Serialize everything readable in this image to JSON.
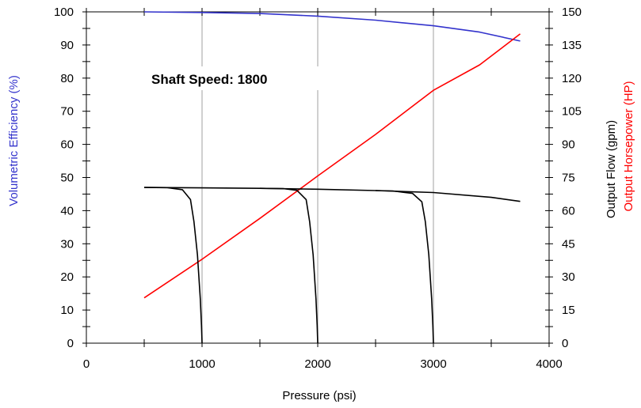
{
  "chart_data": {
    "type": "line",
    "annotation": "Shaft Speed: 1800",
    "xlabel": "Pressure (psi)",
    "xlim": [
      0,
      4000
    ],
    "xticks": [
      0,
      1000,
      2000,
      3000,
      4000
    ],
    "y_left": {
      "label": "Volumetric Efficiency (%)",
      "color": "#3333cc",
      "lim": [
        0,
        100
      ],
      "ticks": [
        0,
        10,
        20,
        30,
        40,
        50,
        60,
        70,
        80,
        90,
        100
      ]
    },
    "y_right": {
      "lim": [
        0,
        150
      ],
      "ticks": [
        0,
        15,
        30,
        45,
        60,
        75,
        90,
        105,
        120,
        135,
        150
      ],
      "labels": [
        {
          "text": "Output Flow (gpm)",
          "color": "#000000"
        },
        {
          "text": "Output Horsepower (HP)",
          "color": "#ff0000"
        }
      ]
    },
    "grid": {
      "vertical_at": [
        1000,
        2000,
        3000
      ]
    },
    "series": [
      {
        "axis": "left",
        "color": "#3333cc",
        "points": [
          [
            500,
            100
          ],
          [
            1000,
            99.8
          ],
          [
            1500,
            99.5
          ],
          [
            2000,
            98.7
          ],
          [
            2500,
            97.5
          ],
          [
            3000,
            95.8
          ],
          [
            3400,
            93.9
          ],
          [
            3750,
            91.2
          ]
        ]
      },
      {
        "axis": "right",
        "color": "#ff0000",
        "points": [
          [
            500,
            20.5
          ],
          [
            1000,
            38
          ],
          [
            1500,
            56.5
          ],
          [
            2000,
            75.7
          ],
          [
            2500,
            94.5
          ],
          [
            3000,
            114.5
          ],
          [
            3400,
            126
          ],
          [
            3750,
            140
          ]
        ]
      },
      {
        "axis": "right",
        "color": "#000000",
        "points": [
          [
            500,
            70.5
          ],
          [
            1000,
            70.3
          ],
          [
            1500,
            70.1
          ],
          [
            2000,
            69.7
          ],
          [
            2500,
            69.1
          ],
          [
            3000,
            68.2
          ],
          [
            3500,
            66.0
          ],
          [
            3750,
            64.2
          ]
        ]
      },
      {
        "axis": "right",
        "color": "#000000",
        "points": [
          [
            500,
            70.5
          ],
          [
            700,
            70.4
          ],
          [
            830,
            69.5
          ],
          [
            900,
            65
          ],
          [
            930,
            55
          ],
          [
            960,
            40
          ],
          [
            985,
            20
          ],
          [
            995,
            8
          ],
          [
            1000,
            0
          ]
        ]
      },
      {
        "axis": "right",
        "color": "#000000",
        "points": [
          [
            1500,
            70.1
          ],
          [
            1700,
            70.0
          ],
          [
            1820,
            69.2
          ],
          [
            1900,
            65
          ],
          [
            1930,
            55
          ],
          [
            1960,
            40
          ],
          [
            1985,
            20
          ],
          [
            1995,
            8
          ],
          [
            2000,
            0
          ]
        ]
      },
      {
        "axis": "right",
        "color": "#000000",
        "points": [
          [
            2500,
            69.1
          ],
          [
            2650,
            68.9
          ],
          [
            2820,
            67.8
          ],
          [
            2900,
            64
          ],
          [
            2930,
            55
          ],
          [
            2960,
            40
          ],
          [
            2985,
            20
          ],
          [
            2995,
            8
          ],
          [
            3000,
            0
          ]
        ]
      }
    ]
  }
}
